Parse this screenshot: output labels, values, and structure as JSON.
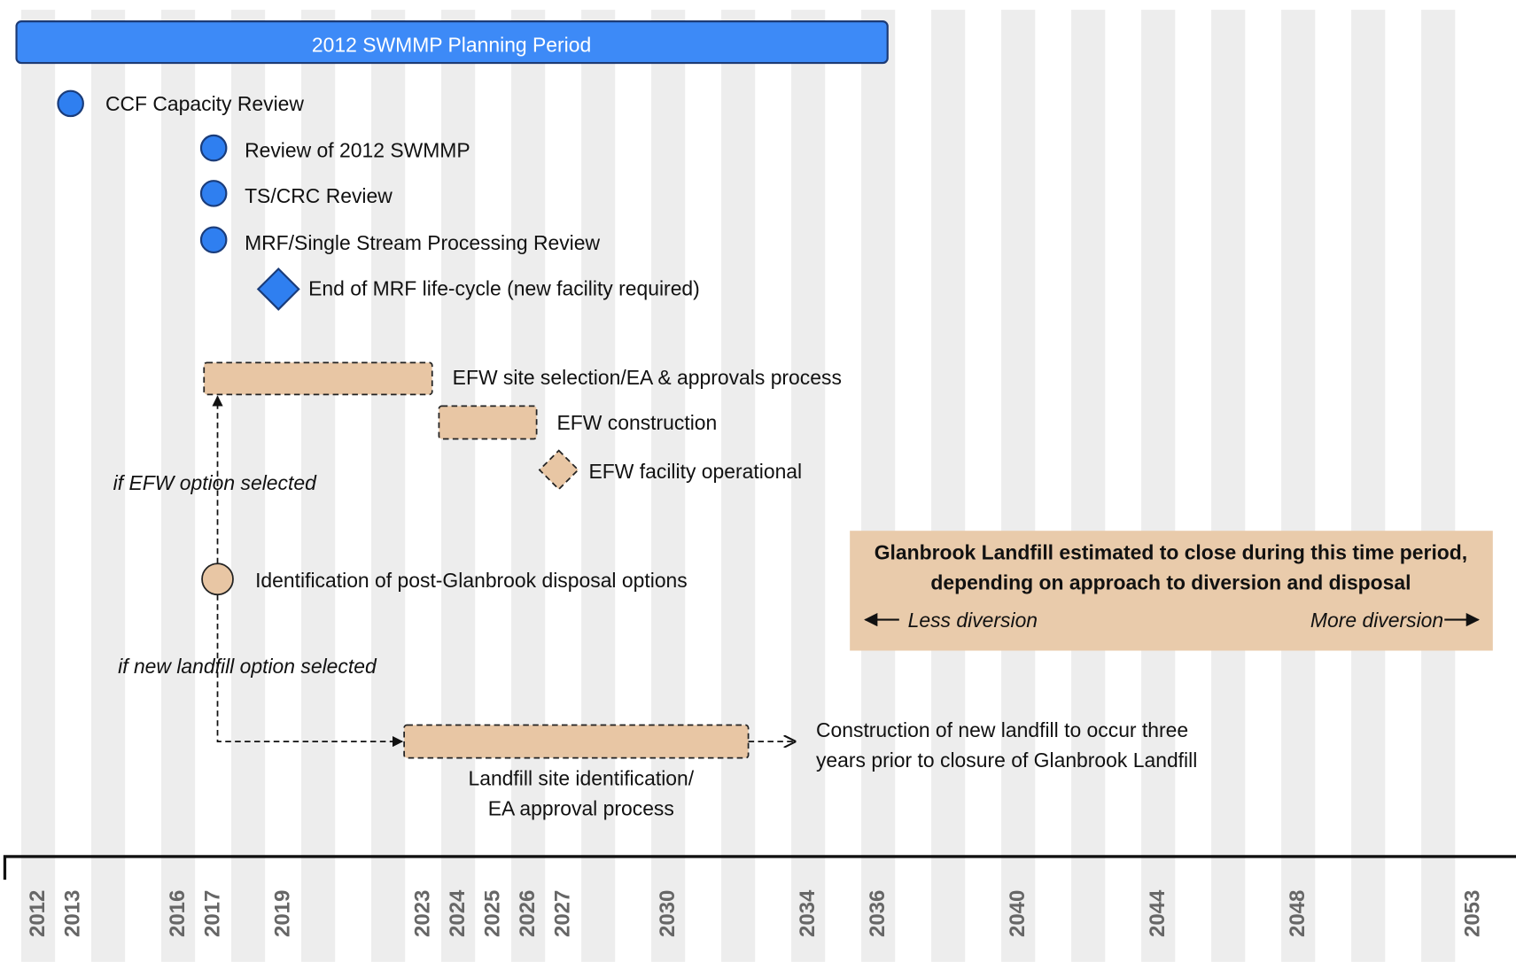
{
  "planning_period": "2012 SWMMP Planning Period",
  "milestones": [
    {
      "label": "CCF Capacity Review"
    },
    {
      "label": "Review of 2012 SWMMP"
    },
    {
      "label": "TS/CRC Review"
    },
    {
      "label": "MRF/Single Stream Processing Review"
    },
    {
      "label": "End of MRF life-cycle (new facility required)"
    },
    {
      "label": "EFW site selection/EA & approvals process"
    },
    {
      "label": "EFW construction"
    },
    {
      "label": "EFW facility operational"
    },
    {
      "label": "Identification of post-Glanbrook disposal options"
    },
    {
      "label": "Landfill site identification/\nEA approval process"
    }
  ],
  "conditions": [
    "if EFW option selected",
    "if new landfill option selected"
  ],
  "landfill_note": [
    "Construction of new landfill to occur three",
    "years prior to closure of Glanbrook Landfill"
  ],
  "closure_box": {
    "lines": [
      "Glanbrook Landfill estimated to close during this time period,",
      "depending on approach to diversion and disposal"
    ],
    "less": "Less diversion",
    "more": "More diversion"
  },
  "axis": {
    "years": [
      2012,
      2013,
      2016,
      2017,
      2019,
      2023,
      2024,
      2025,
      2026,
      2027,
      2030,
      2034,
      2036,
      2040,
      2044,
      2048,
      2053
    ]
  }
}
